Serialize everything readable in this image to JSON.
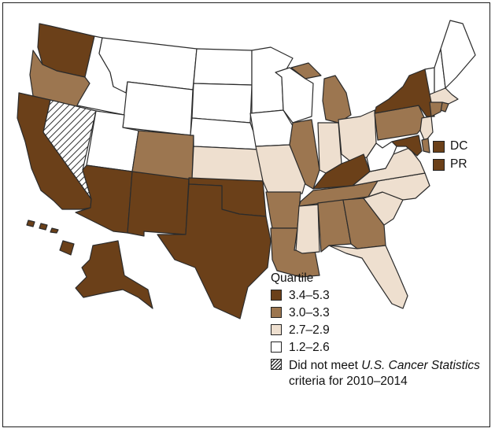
{
  "colors": {
    "q1": "#6b4019",
    "q2": "#9c7650",
    "q3": "#eedfcf",
    "q4": "#ffffff",
    "hatch": "#333333",
    "border": "#2b2b2b"
  },
  "territories": [
    {
      "name": "DC",
      "quartile": "q1"
    },
    {
      "name": "PR",
      "quartile": "q1"
    }
  ],
  "legend": {
    "title": "Quartile",
    "items": [
      {
        "label": "3.4–5.3",
        "class": "q1"
      },
      {
        "label": "3.0–3.3",
        "class": "q2"
      },
      {
        "label": "2.7–2.9",
        "class": "q3"
      },
      {
        "label": "1.2–2.6",
        "class": "q4"
      }
    ],
    "hatch_label": {
      "pre": "Did not meet ",
      "italic": "U.S. Cancer Statistics",
      "post": " criteria for 2010–2014"
    }
  },
  "states": {
    "WA": "q1",
    "OR": "q2",
    "CA": "q1",
    "NV": "hatch",
    "ID": "q4",
    "MT": "q4",
    "WY": "q4",
    "UT": "q4",
    "AZ": "q1",
    "NM": "q1",
    "CO": "q2",
    "ND": "q4",
    "SD": "q4",
    "NE": "q4",
    "KS": "q3",
    "OK": "q1",
    "TX": "q1",
    "MN": "q4",
    "IA": "q4",
    "MO": "q3",
    "AR": "q2",
    "LA": "q2",
    "WI": "q4",
    "IL": "q2",
    "MI": "q2",
    "IN": "q3",
    "OH": "q3",
    "KY": "q1",
    "TN": "q2",
    "MS": "q3",
    "AL": "q2",
    "GA": "q2",
    "FL": "q3",
    "SC": "q3",
    "NC": "q3",
    "VA": "q3",
    "WV": "q4",
    "PA": "q2",
    "NY": "q1",
    "VT": "q4",
    "NH": "q4",
    "ME": "q4",
    "MA": "q3",
    "RI": "q2",
    "CT": "q2",
    "NJ": "q3",
    "DE": "q2",
    "MD": "q1",
    "AK": "q1",
    "HI": "q1"
  }
}
